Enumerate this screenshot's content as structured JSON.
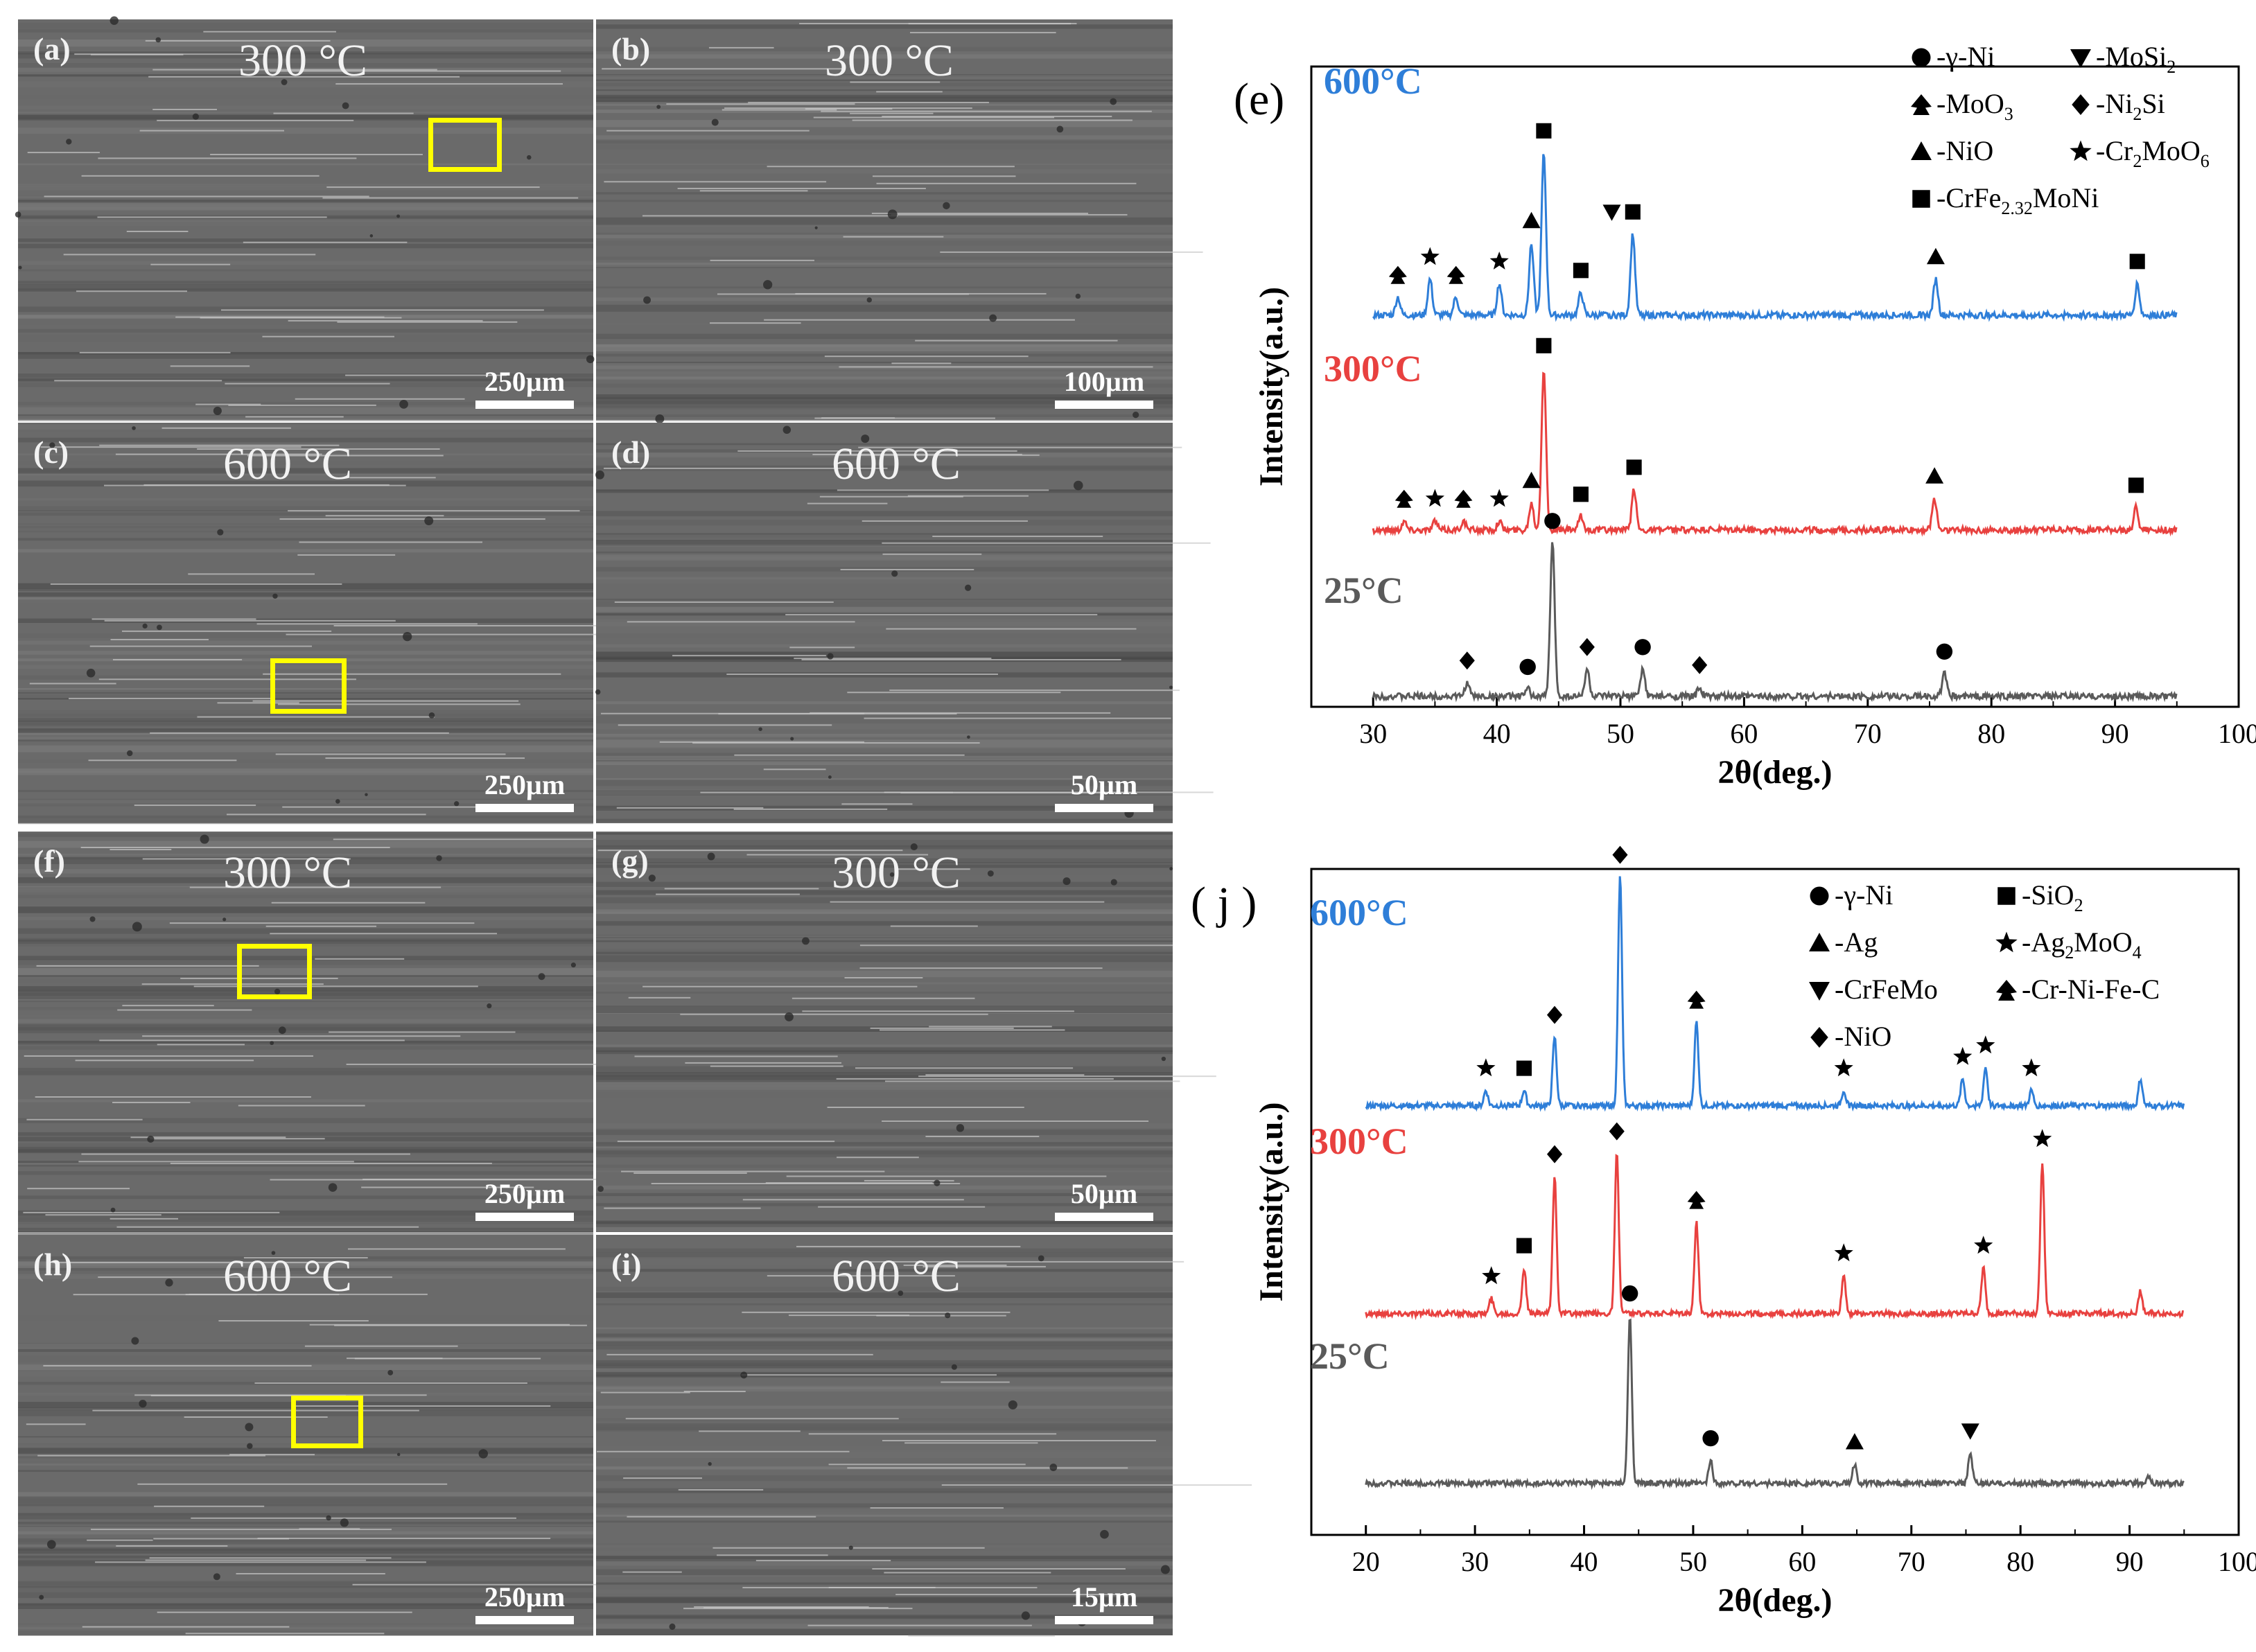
{
  "sem_panels": [
    {
      "label": "(a)",
      "temp": "300 °C",
      "scale": "250µm"
    },
    {
      "label": "(b)",
      "temp": "300 °C",
      "scale": "100µm"
    },
    {
      "label": "(c)",
      "temp": "600 °C",
      "scale": "250µm"
    },
    {
      "label": "(d)",
      "temp": "600 °C",
      "scale": "50µm"
    },
    {
      "label": "(f)",
      "temp": "300 °C",
      "scale": "250µm"
    },
    {
      "label": "(g)",
      "temp": "300 °C",
      "scale": "50µm"
    },
    {
      "label": "(h)",
      "temp": "600 °C",
      "scale": "250µm"
    },
    {
      "label": "(i)",
      "temp": "600 °C",
      "scale": "15µm"
    }
  ],
  "colors": {
    "blue": "#2e7ed8",
    "red": "#e8413f",
    "gray": "#5a5a5a",
    "yellow": "#ffff00"
  },
  "chart_data": [
    {
      "type": "line",
      "panel_label": "(e)",
      "xlabel": "2θ(deg.)",
      "ylabel": "Intensity(a.u.)",
      "xlim": [
        25,
        100
      ],
      "xticks": [
        "30",
        "40",
        "50",
        "60",
        "70",
        "80",
        "90",
        "100"
      ],
      "series": [
        {
          "name": "600°C",
          "color": "#2e7ed8",
          "peaks": [
            [
              32,
              2
            ],
            [
              34.6,
              4
            ],
            [
              36.7,
              2
            ],
            [
              40.2,
              3.5
            ],
            [
              42.8,
              8
            ],
            [
              43.8,
              18
            ],
            [
              46.8,
              2.5
            ],
            [
              51,
              9
            ],
            [
              75.5,
              4
            ],
            [
              91.8,
              3.5
            ]
          ]
        },
        {
          "name": "300°C",
          "color": "#e8413f",
          "peaks": [
            [
              32.5,
              1
            ],
            [
              35,
              1
            ],
            [
              37.3,
              1
            ],
            [
              40.2,
              1
            ],
            [
              42.8,
              3
            ],
            [
              43.8,
              18
            ],
            [
              46.8,
              1.5
            ],
            [
              51.1,
              4.5
            ],
            [
              75.4,
              3.5
            ],
            [
              91.7,
              2.5
            ]
          ]
        },
        {
          "name": "25°C",
          "color": "#5a5a5a",
          "peaks": [
            [
              37.6,
              1.5
            ],
            [
              42.5,
              0.8
            ],
            [
              44.5,
              17
            ],
            [
              47.3,
              3
            ],
            [
              51.8,
              3
            ],
            [
              56.4,
              1
            ],
            [
              76.2,
              2.5
            ]
          ]
        }
      ],
      "markers": [
        {
          "s": "600°C",
          "x": 43.8,
          "sym": "square"
        },
        {
          "s": "600°C",
          "x": 42.8,
          "sym": "triangle"
        },
        {
          "s": "600°C",
          "x": 51,
          "sym": "square"
        },
        {
          "s": "600°C",
          "x": 46.8,
          "sym": "square"
        },
        {
          "s": "600°C",
          "x": 49.3,
          "sym": "down-triangle"
        },
        {
          "s": "600°C",
          "x": 32,
          "sym": "spade"
        },
        {
          "s": "600°C",
          "x": 34.6,
          "sym": "star"
        },
        {
          "s": "600°C",
          "x": 36.7,
          "sym": "spade"
        },
        {
          "s": "600°C",
          "x": 40.2,
          "sym": "star"
        },
        {
          "s": "600°C",
          "x": 75.5,
          "sym": "triangle"
        },
        {
          "s": "600°C",
          "x": 91.8,
          "sym": "square"
        },
        {
          "s": "300°C",
          "x": 43.8,
          "sym": "square"
        },
        {
          "s": "300°C",
          "x": 42.8,
          "sym": "triangle"
        },
        {
          "s": "300°C",
          "x": 51.1,
          "sym": "square"
        },
        {
          "s": "300°C",
          "x": 46.8,
          "sym": "square"
        },
        {
          "s": "300°C",
          "x": 32.5,
          "sym": "spade"
        },
        {
          "s": "300°C",
          "x": 35,
          "sym": "star"
        },
        {
          "s": "300°C",
          "x": 37.3,
          "sym": "spade"
        },
        {
          "s": "300°C",
          "x": 40.2,
          "sym": "star"
        },
        {
          "s": "300°C",
          "x": 75.4,
          "sym": "triangle"
        },
        {
          "s": "300°C",
          "x": 91.7,
          "sym": "square"
        },
        {
          "s": "25°C",
          "x": 44.5,
          "sym": "circle"
        },
        {
          "s": "25°C",
          "x": 42.5,
          "sym": "circle"
        },
        {
          "s": "25°C",
          "x": 37.6,
          "sym": "diamond"
        },
        {
          "s": "25°C",
          "x": 47.3,
          "sym": "diamond"
        },
        {
          "s": "25°C",
          "x": 51.8,
          "sym": "circle"
        },
        {
          "s": "25°C",
          "x": 56.4,
          "sym": "diamond"
        },
        {
          "s": "25°C",
          "x": 76.2,
          "sym": "circle"
        }
      ],
      "legend": [
        {
          "sym": "circle",
          "text": "-γ-Ni"
        },
        {
          "sym": "down-triangle",
          "text": "-MoSi",
          "sub": "2"
        },
        {
          "sym": "spade",
          "text": "-MoO",
          "sub": "3"
        },
        {
          "sym": "diamond",
          "text": "-Ni",
          "sub": "2",
          "tail": "Si"
        },
        {
          "sym": "triangle",
          "text": "-NiO"
        },
        {
          "sym": "star",
          "text": "-Cr",
          "sub": "2",
          "tail": "MoO",
          "sub2": "6"
        },
        {
          "sym": "square",
          "text": "-CrFe",
          "sub": "2.32",
          "tail": "MoNi"
        }
      ]
    },
    {
      "type": "line",
      "panel_label": "( j )",
      "xlabel": "2θ(deg.)",
      "ylabel": "Intensity(a.u.)",
      "xlim": [
        15,
        100
      ],
      "xticks": [
        "20",
        "30",
        "40",
        "50",
        "60",
        "70",
        "80",
        "90",
        "100"
      ],
      "series": [
        {
          "name": "600°C",
          "color": "#2e7ed8",
          "peaks": [
            [
              31,
              2
            ],
            [
              34.5,
              2
            ],
            [
              37.3,
              9
            ],
            [
              43.3,
              30
            ],
            [
              50.3,
              11
            ],
            [
              63.8,
              2
            ],
            [
              74.7,
              3.5
            ],
            [
              76.8,
              5
            ],
            [
              81,
              2
            ],
            [
              91,
              3.5
            ]
          ]
        },
        {
          "name": "300°C",
          "color": "#e8413f",
          "peaks": [
            [
              31.5,
              2
            ],
            [
              34.5,
              6
            ],
            [
              37.3,
              18
            ],
            [
              43,
              21
            ],
            [
              50.3,
              12
            ],
            [
              63.8,
              5
            ],
            [
              76.6,
              6
            ],
            [
              82,
              20
            ],
            [
              91,
              3
            ]
          ]
        },
        {
          "name": "25°C",
          "color": "#5a5a5a",
          "peaks": [
            [
              44.2,
              22
            ],
            [
              51.6,
              3
            ],
            [
              64.8,
              2.5
            ],
            [
              75.4,
              4
            ],
            [
              91.7,
              1
            ]
          ]
        }
      ],
      "markers": [
        {
          "s": "600°C",
          "x": 31,
          "sym": "star"
        },
        {
          "s": "600°C",
          "x": 34.5,
          "sym": "square"
        },
        {
          "s": "600°C",
          "x": 37.3,
          "sym": "diamond"
        },
        {
          "s": "600°C",
          "x": 43.3,
          "sym": "diamond"
        },
        {
          "s": "600°C",
          "x": 50.3,
          "sym": "spade"
        },
        {
          "s": "600°C",
          "x": 63.8,
          "sym": "star"
        },
        {
          "s": "600°C",
          "x": 74.7,
          "sym": "star"
        },
        {
          "s": "600°C",
          "x": 76.8,
          "sym": "star"
        },
        {
          "s": "600°C",
          "x": 81,
          "sym": "star"
        },
        {
          "s": "300°C",
          "x": 31.5,
          "sym": "star"
        },
        {
          "s": "300°C",
          "x": 34.5,
          "sym": "square"
        },
        {
          "s": "300°C",
          "x": 37.3,
          "sym": "diamond"
        },
        {
          "s": "300°C",
          "x": 43,
          "sym": "diamond"
        },
        {
          "s": "300°C",
          "x": 50.3,
          "sym": "spade"
        },
        {
          "s": "300°C",
          "x": 63.8,
          "sym": "star"
        },
        {
          "s": "300°C",
          "x": 76.6,
          "sym": "star"
        },
        {
          "s": "300°C",
          "x": 82,
          "sym": "star"
        },
        {
          "s": "25°C",
          "x": 44.2,
          "sym": "circle"
        },
        {
          "s": "25°C",
          "x": 51.6,
          "sym": "circle"
        },
        {
          "s": "25°C",
          "x": 64.8,
          "sym": "triangle"
        },
        {
          "s": "25°C",
          "x": 75.4,
          "sym": "down-triangle"
        }
      ],
      "legend": [
        {
          "sym": "circle",
          "text": "-γ-Ni"
        },
        {
          "sym": "square",
          "text": "-SiO",
          "sub": "2"
        },
        {
          "sym": "triangle",
          "text": "-Ag"
        },
        {
          "sym": "star",
          "text": "-Ag",
          "sub": "2",
          "tail": "MoO",
          "sub2": "4"
        },
        {
          "sym": "down-triangle",
          "text": "-CrFeMo"
        },
        {
          "sym": "spade",
          "text": "-Cr-Ni-Fe-C"
        },
        {
          "sym": "diamond",
          "text": "-NiO"
        }
      ]
    }
  ]
}
